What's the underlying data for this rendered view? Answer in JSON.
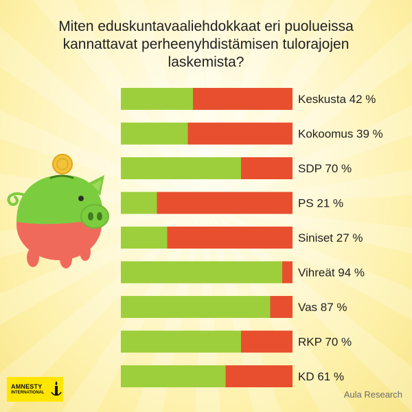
{
  "title": "Miten eduskuntavaaliehdokkaat eri puolueissa kannattavat perheenyhdistämisen tulorajojen laskemista?",
  "source": "Aula Research",
  "logo": {
    "line1": "AMNESTY",
    "line2": "INTERNATIONAL"
  },
  "colors": {
    "support": "#9dcf3c",
    "oppose": "#e84f2e",
    "pig_body": "#7ccc3f",
    "pig_belly": "#f06a5c",
    "coin": "#f2c23a"
  },
  "icons": {
    "piggy_bank": "piggy-bank-icon",
    "coin": "coin-icon",
    "candle": "candle-icon"
  },
  "chart_data": {
    "type": "bar",
    "orientation": "horizontal",
    "stacked": true,
    "categories": [
      "Keskusta",
      "Kokoomus",
      "SDP",
      "PS",
      "Siniset",
      "Vihreät",
      "Vas",
      "RKP",
      "KD"
    ],
    "labels": [
      "Keskusta 42 %",
      "Kokoomus 39 %",
      "SDP 70 %",
      "PS 21 %",
      "Siniset 27 %",
      "Vihreät 94 %",
      "Vas 87 %",
      "RKP 70 %",
      "KD 61 %"
    ],
    "values": [
      42,
      39,
      70,
      21,
      27,
      94,
      87,
      70,
      61
    ],
    "xlim": [
      0,
      100
    ],
    "grid": false,
    "legend": "none"
  }
}
